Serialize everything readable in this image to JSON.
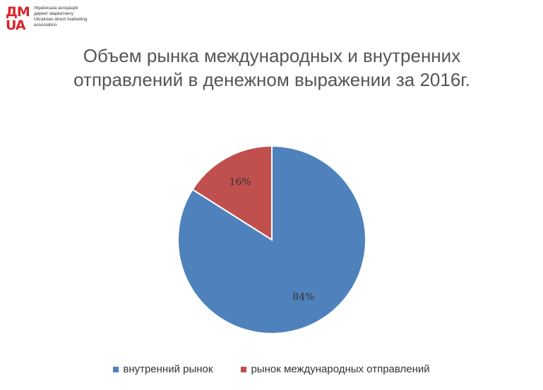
{
  "logo": {
    "mark_top": "ДМ",
    "mark_bottom": "UA",
    "lines": [
      "Українська асоціація",
      "директ маркетингу",
      "Ukrainian direct marketing",
      "association"
    ]
  },
  "chart_data": {
    "type": "pie",
    "title": "Объем рынка международных и внутренних отправлений в денежном выражении за 2016г.",
    "categories": [
      "внутренний рынок",
      "рынок международных отправлений"
    ],
    "values": [
      84,
      16
    ],
    "value_labels": [
      "84%",
      "16%"
    ],
    "colors": [
      "#4f81bd",
      "#c0504d"
    ],
    "legend": "bottom"
  }
}
